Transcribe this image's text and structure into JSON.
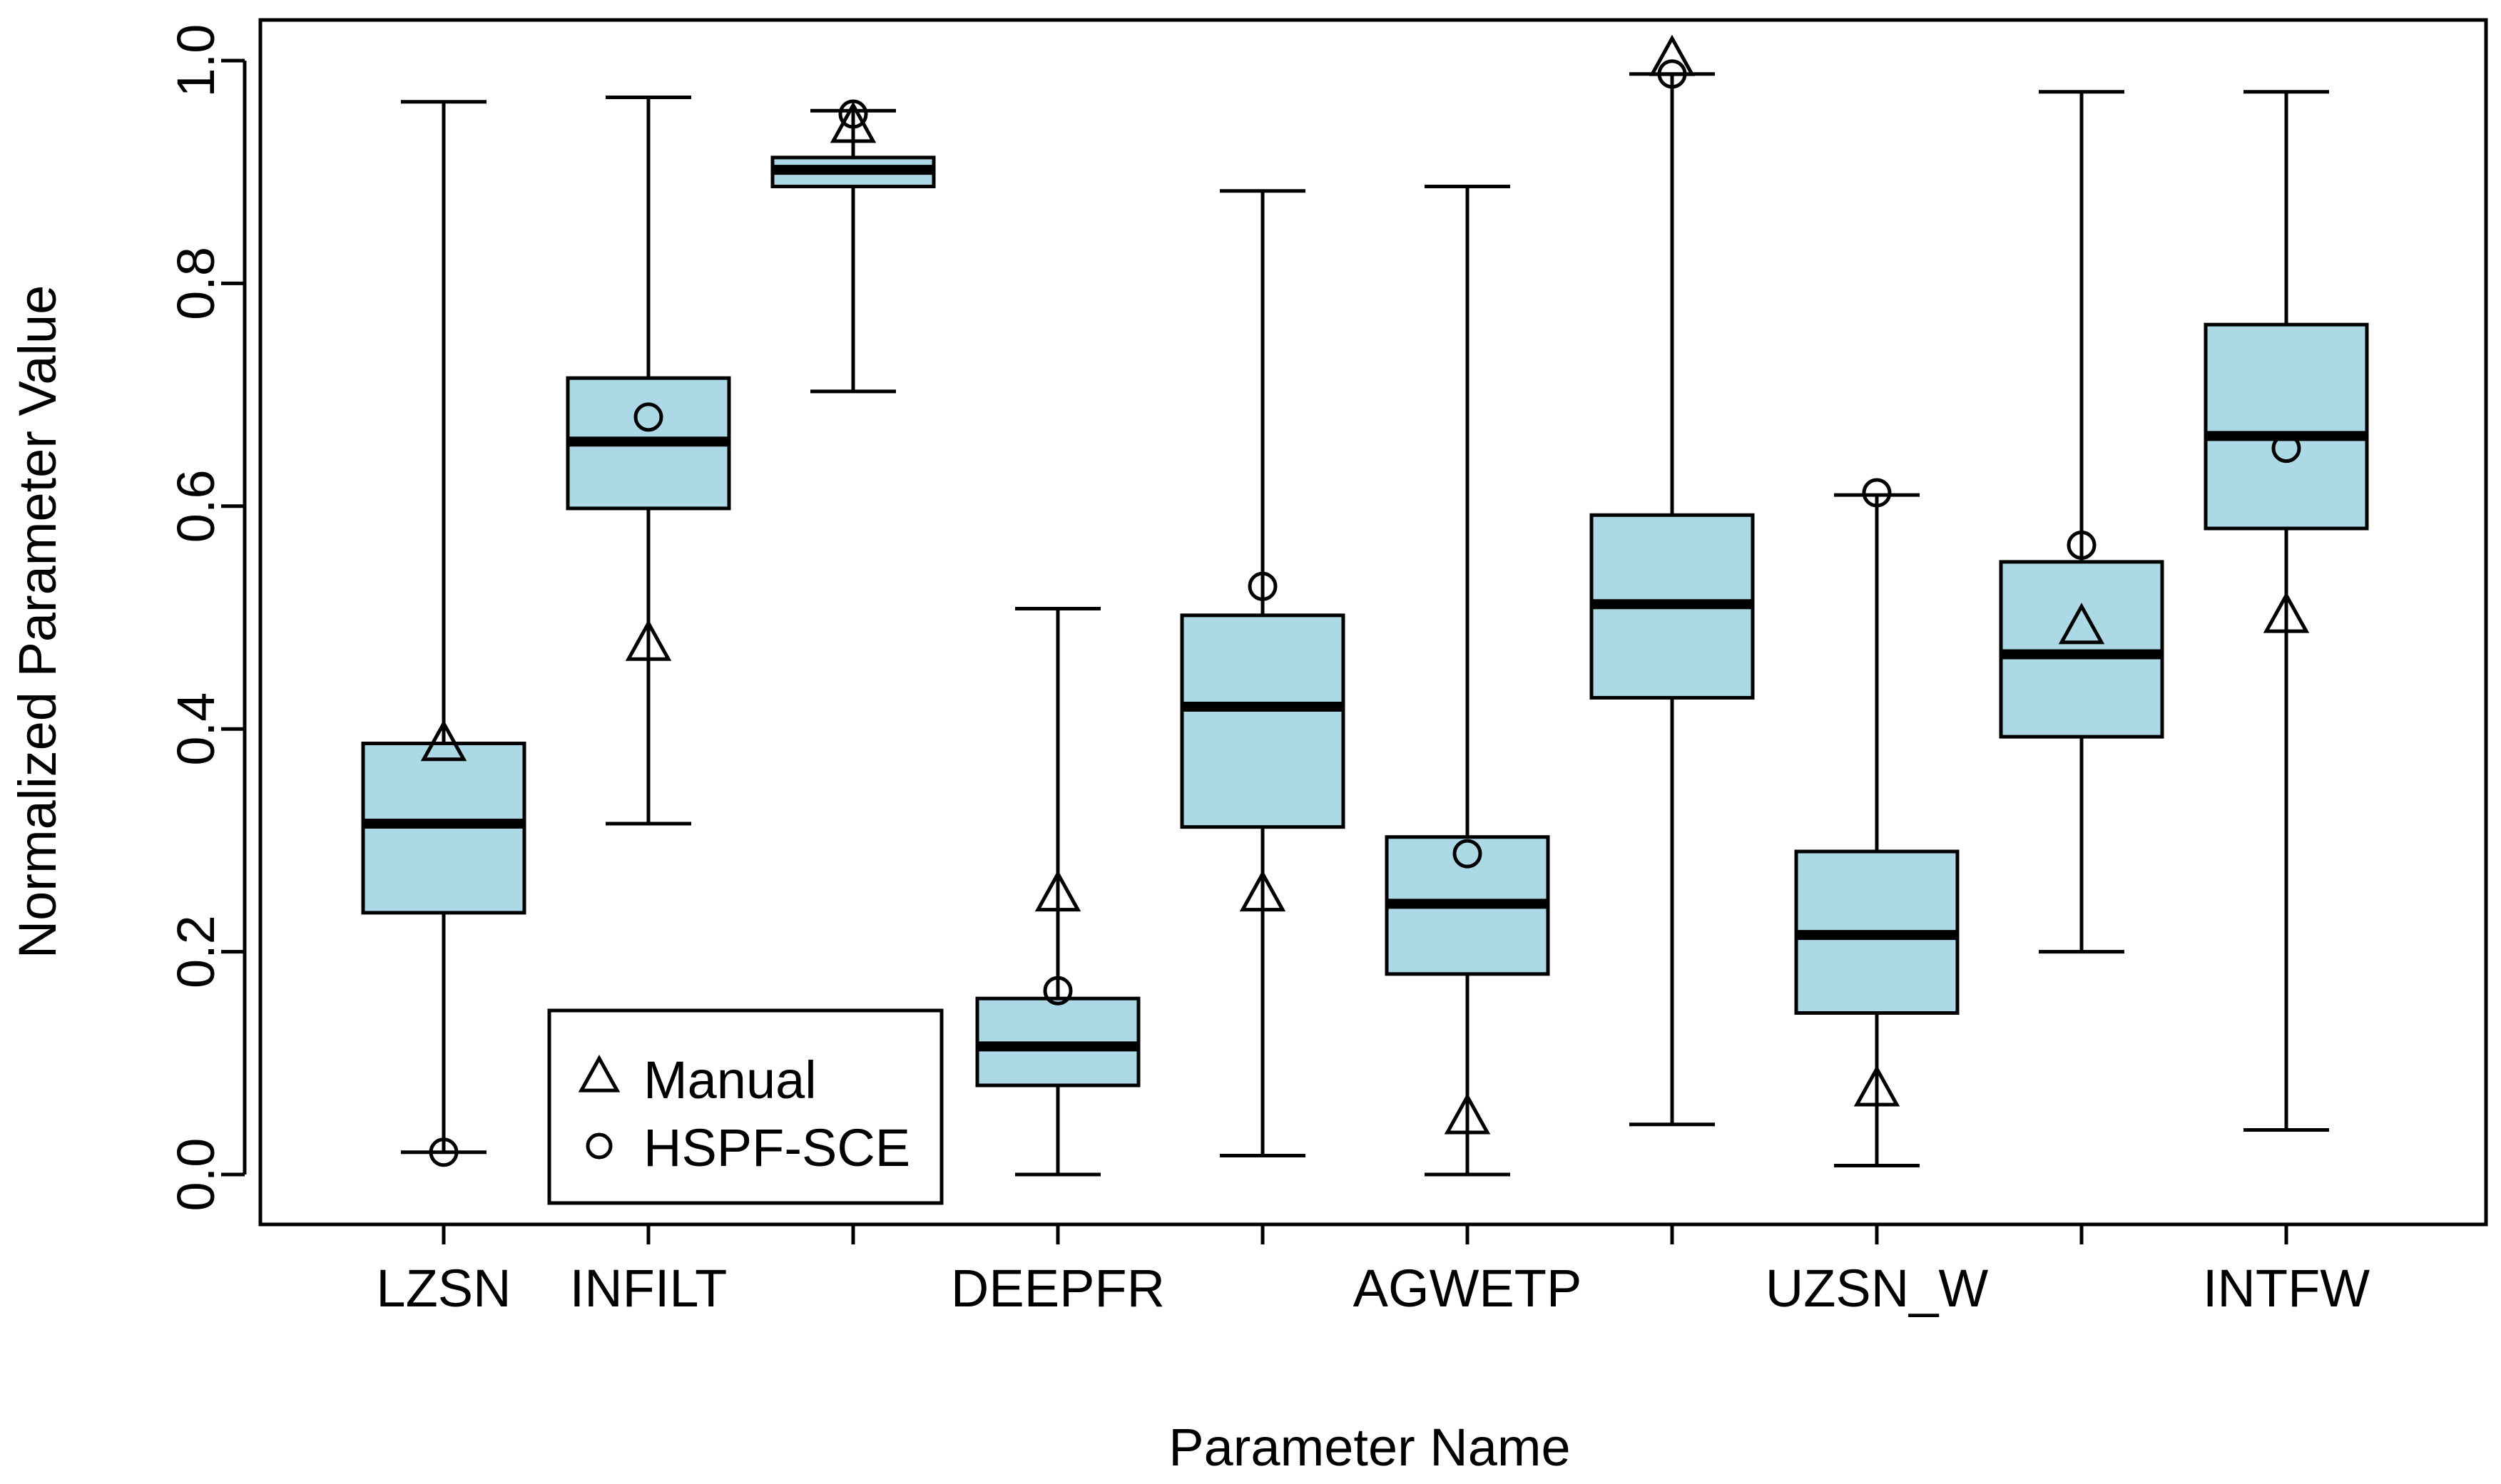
{
  "chart_data": {
    "type": "box",
    "xlabel": "Parameter Name",
    "ylabel": "Normalized Parameter Value",
    "ylim": [
      -0.04,
      1.04
    ],
    "yticks": [
      "0.0",
      "0.2",
      "0.4",
      "0.6",
      "0.8",
      "1.0"
    ],
    "grid": false,
    "legend_position": "bottom-left",
    "box_fill": "#add8e6",
    "categories": [
      "LZSN",
      "INFILT",
      "",
      "DEEPFR",
      "",
      "AGWETP",
      "",
      "UZSN_W",
      "",
      "INTFW"
    ],
    "boxes": [
      {
        "category": "LZSN",
        "whisker_low": 0.02,
        "q1": 0.235,
        "median": 0.315,
        "q3": 0.387,
        "whisker_high": 0.963
      },
      {
        "category": "INFILT",
        "whisker_low": 0.315,
        "q1": 0.598,
        "median": 0.658,
        "q3": 0.715,
        "whisker_high": 0.967
      },
      {
        "category": "",
        "whisker_low": 0.703,
        "q1": 0.887,
        "median": 0.902,
        "q3": 0.913,
        "whisker_high": 0.955
      },
      {
        "category": "DEEPFR",
        "whisker_low": 0.0,
        "q1": 0.08,
        "median": 0.115,
        "q3": 0.158,
        "whisker_high": 0.508
      },
      {
        "category": "",
        "whisker_low": 0.017,
        "q1": 0.312,
        "median": 0.42,
        "q3": 0.502,
        "whisker_high": 0.883
      },
      {
        "category": "AGWETP",
        "whisker_low": 0.0,
        "q1": 0.18,
        "median": 0.243,
        "q3": 0.303,
        "whisker_high": 0.887
      },
      {
        "category": "",
        "whisker_low": 0.045,
        "q1": 0.428,
        "median": 0.512,
        "q3": 0.592,
        "whisker_high": 0.988
      },
      {
        "category": "UZSN_W",
        "whisker_low": 0.008,
        "q1": 0.145,
        "median": 0.215,
        "q3": 0.29,
        "whisker_high": 0.61
      },
      {
        "category": "",
        "whisker_low": 0.2,
        "q1": 0.393,
        "median": 0.467,
        "q3": 0.55,
        "whisker_high": 0.972
      },
      {
        "category": "INTFW",
        "whisker_low": 0.04,
        "q1": 0.58,
        "median": 0.663,
        "q3": 0.763,
        "whisker_high": 0.972
      }
    ],
    "series": [
      {
        "name": "Manual",
        "marker": "triangle",
        "values": [
          0.385,
          0.475,
          0.94,
          0.25,
          0.25,
          0.05,
          1.0,
          0.075,
          0.49,
          0.5
        ]
      },
      {
        "name": "HSPF-SCE",
        "marker": "circle",
        "values": [
          0.02,
          0.68,
          0.952,
          0.165,
          0.528,
          0.288,
          0.988,
          0.612,
          0.565,
          0.652
        ]
      }
    ],
    "legend": [
      {
        "marker": "triangle",
        "label": "Manual"
      },
      {
        "marker": "circle",
        "label": "HSPF-SCE"
      }
    ]
  }
}
